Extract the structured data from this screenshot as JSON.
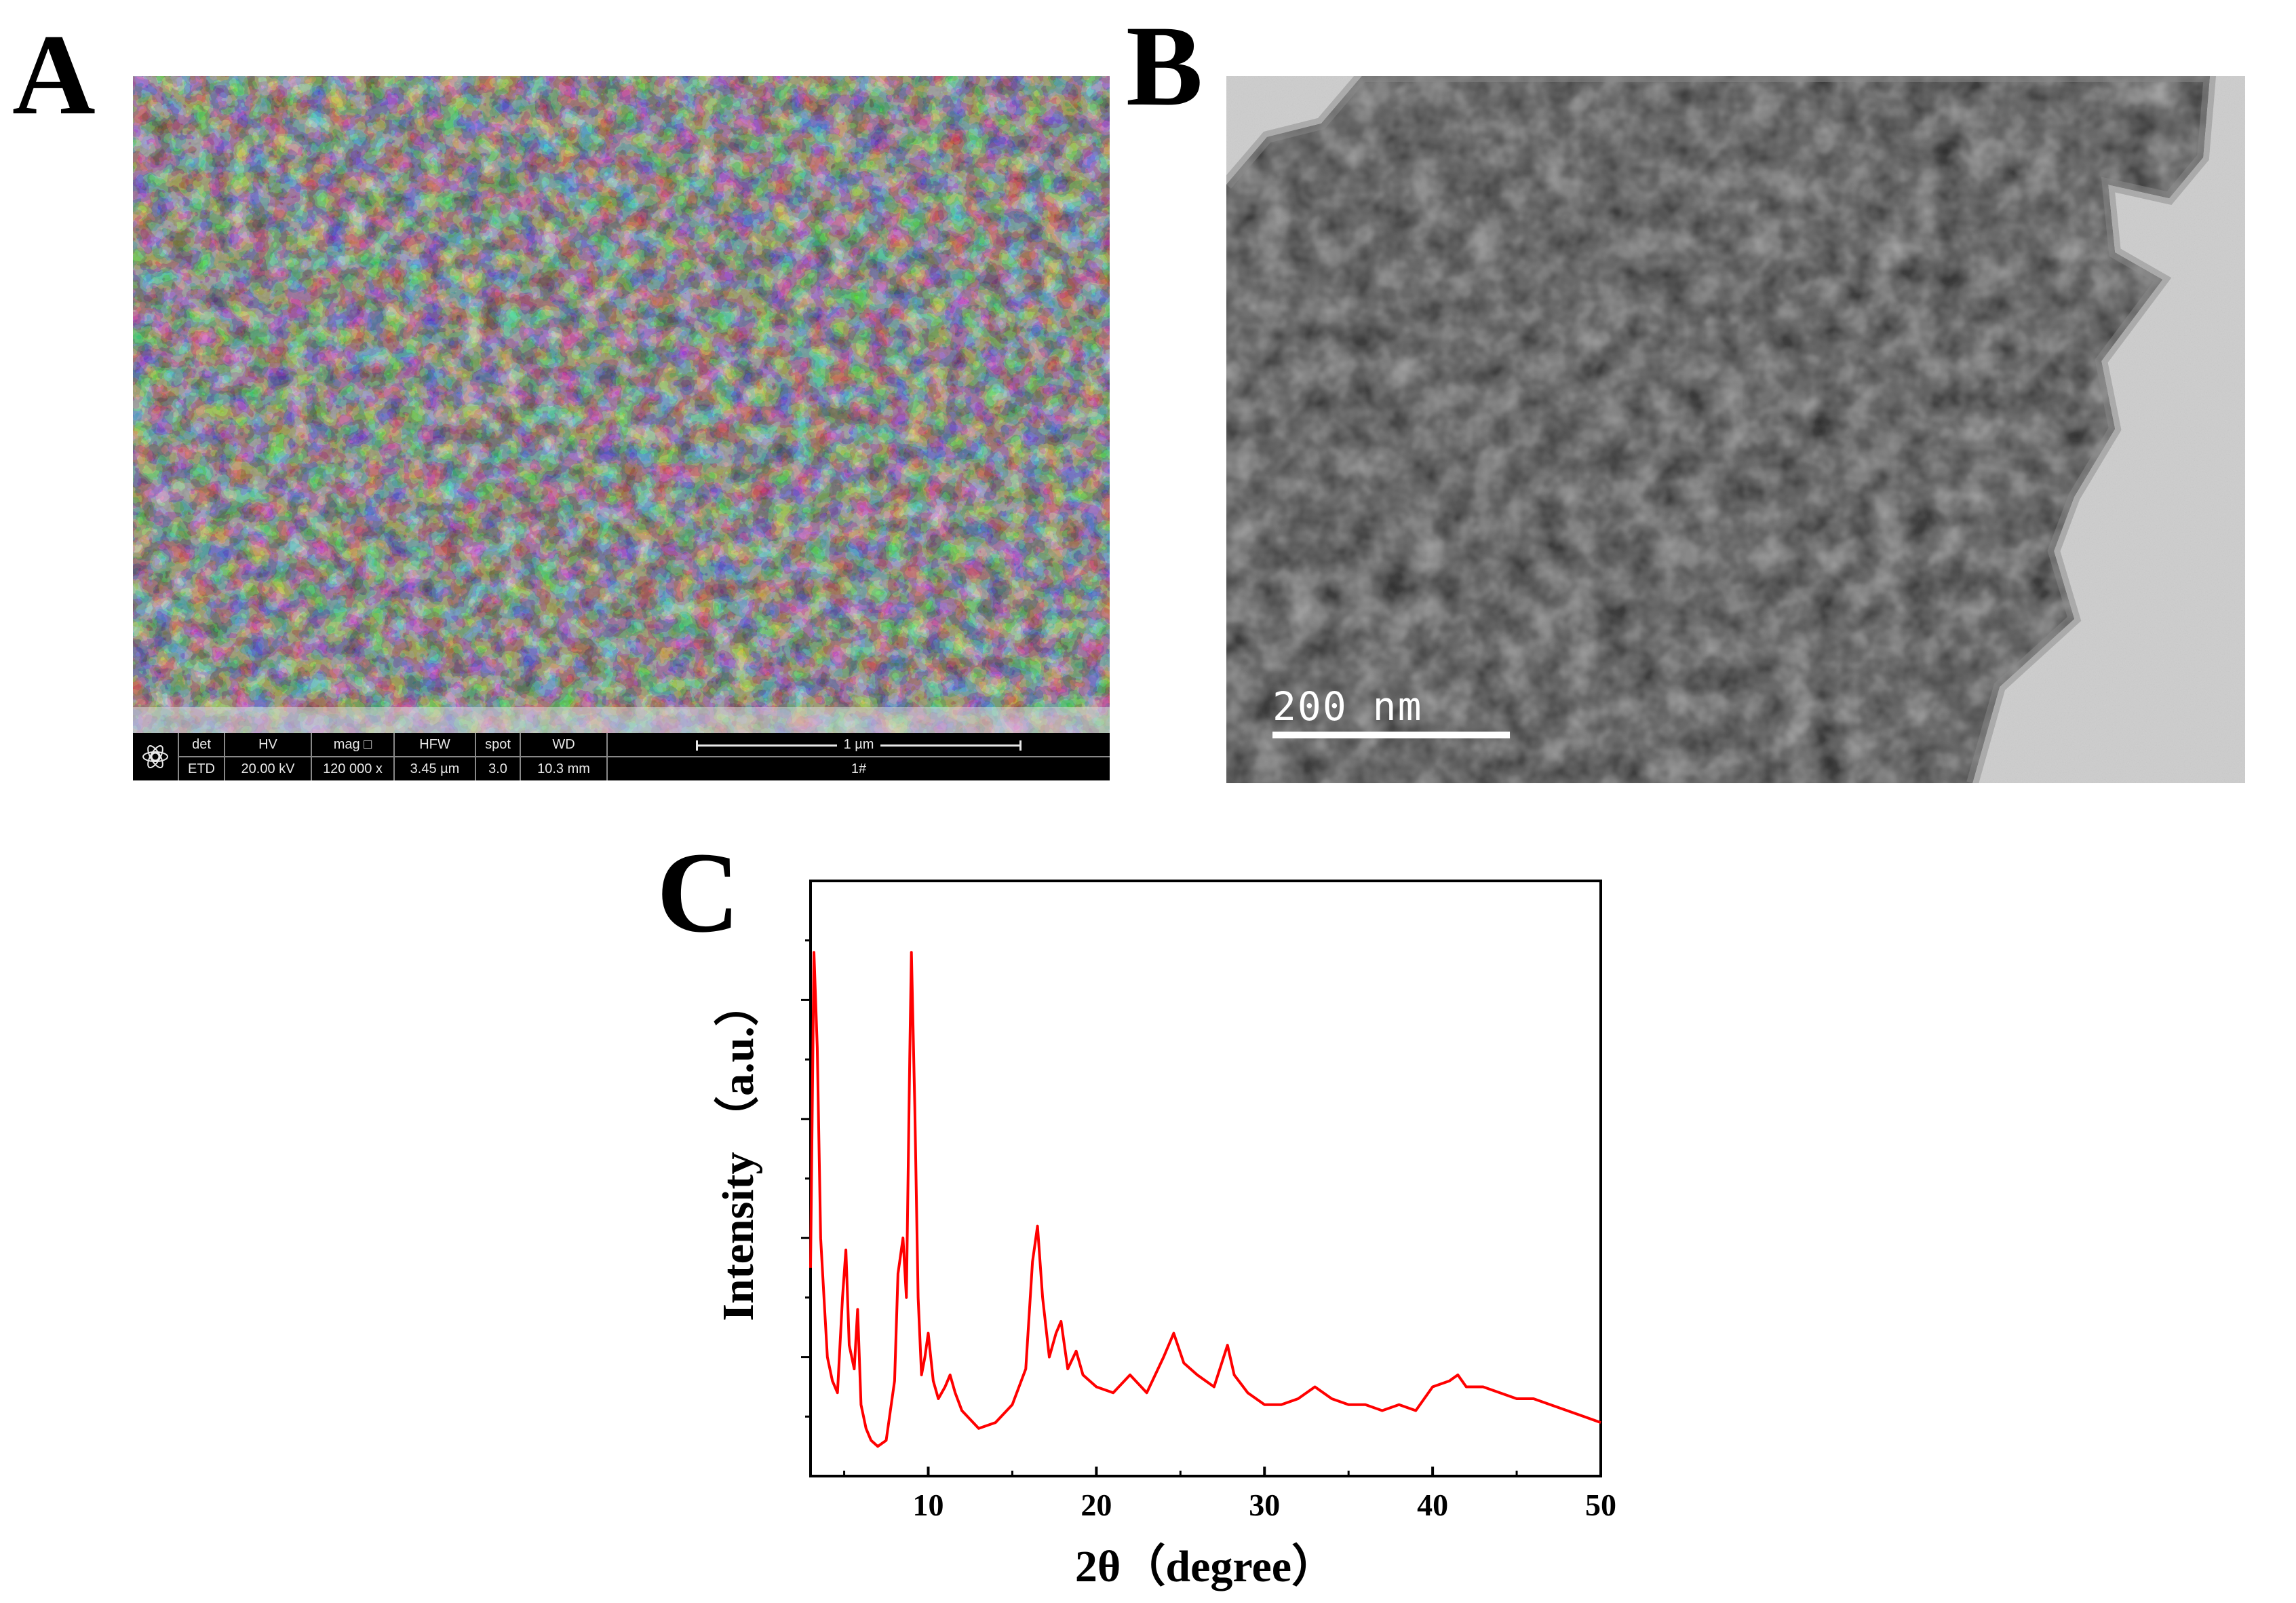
{
  "panels": {
    "a_label": "A",
    "b_label": "B",
    "c_label": "C"
  },
  "sem_databar": {
    "cells": [
      {
        "header": "det",
        "value": "ETD"
      },
      {
        "header": "HV",
        "value": "20.00 kV"
      },
      {
        "header": "mag □",
        "value": "120 000 x"
      },
      {
        "header": "HFW",
        "value": "3.45 µm"
      },
      {
        "header": "spot",
        "value": "3.0"
      },
      {
        "header": "WD",
        "value": "10.3 mm"
      }
    ],
    "scale_label": "1 µm",
    "sample_id": "1#"
  },
  "tem": {
    "scale_label": "200 nm"
  },
  "chart_data": {
    "type": "line",
    "title": "",
    "xlabel": "2θ（degree）",
    "ylabel": "Intensity （a.u.）",
    "xlim": [
      3,
      50
    ],
    "ylim": [
      0,
      100
    ],
    "xticks": [
      10,
      20,
      30,
      40,
      50
    ],
    "color": "#ff0000",
    "grid": false,
    "series": [
      {
        "x": [
          3.0,
          3.2,
          3.4,
          3.6,
          3.8,
          4.0,
          4.3,
          4.6,
          4.9,
          5.1,
          5.3,
          5.6,
          5.8,
          6.0,
          6.3,
          6.6,
          7.0,
          7.5,
          8.0,
          8.2,
          8.5,
          8.7,
          8.9,
          9.0,
          9.2,
          9.4,
          9.6,
          9.8,
          10.0,
          10.3,
          10.6,
          11.0,
          11.3,
          11.6,
          12.0,
          13.0,
          14.0,
          15.0,
          15.8,
          16.2,
          16.5,
          16.8,
          17.2,
          17.6,
          17.9,
          18.3,
          18.8,
          19.2,
          20.0,
          21.0,
          22.0,
          23.0,
          24.0,
          24.6,
          25.2,
          26.0,
          27.0,
          27.8,
          28.2,
          29.0,
          30.0,
          31.0,
          32.0,
          33.0,
          34.0,
          35.0,
          36.0,
          37.0,
          38.0,
          39.0,
          40.0,
          41.0,
          41.5,
          42.0,
          43.0,
          44.0,
          45.0,
          46.0,
          47.0,
          48.0,
          49.0,
          50.0
        ],
        "y": [
          35,
          88,
          72,
          40,
          30,
          20,
          16,
          14,
          30,
          38,
          22,
          18,
          28,
          12,
          8,
          6,
          5,
          6,
          16,
          34,
          40,
          30,
          70,
          88,
          62,
          30,
          17,
          20,
          24,
          16,
          13,
          15,
          17,
          14,
          11,
          8,
          9,
          12,
          18,
          36,
          42,
          30,
          20,
          24,
          26,
          18,
          21,
          17,
          15,
          14,
          17,
          14,
          20,
          24,
          19,
          17,
          15,
          22,
          17,
          14,
          12,
          12,
          13,
          15,
          13,
          12,
          12,
          11,
          12,
          11,
          15,
          16,
          17,
          15,
          15,
          14,
          13,
          13,
          12,
          11,
          10,
          9
        ]
      }
    ]
  }
}
